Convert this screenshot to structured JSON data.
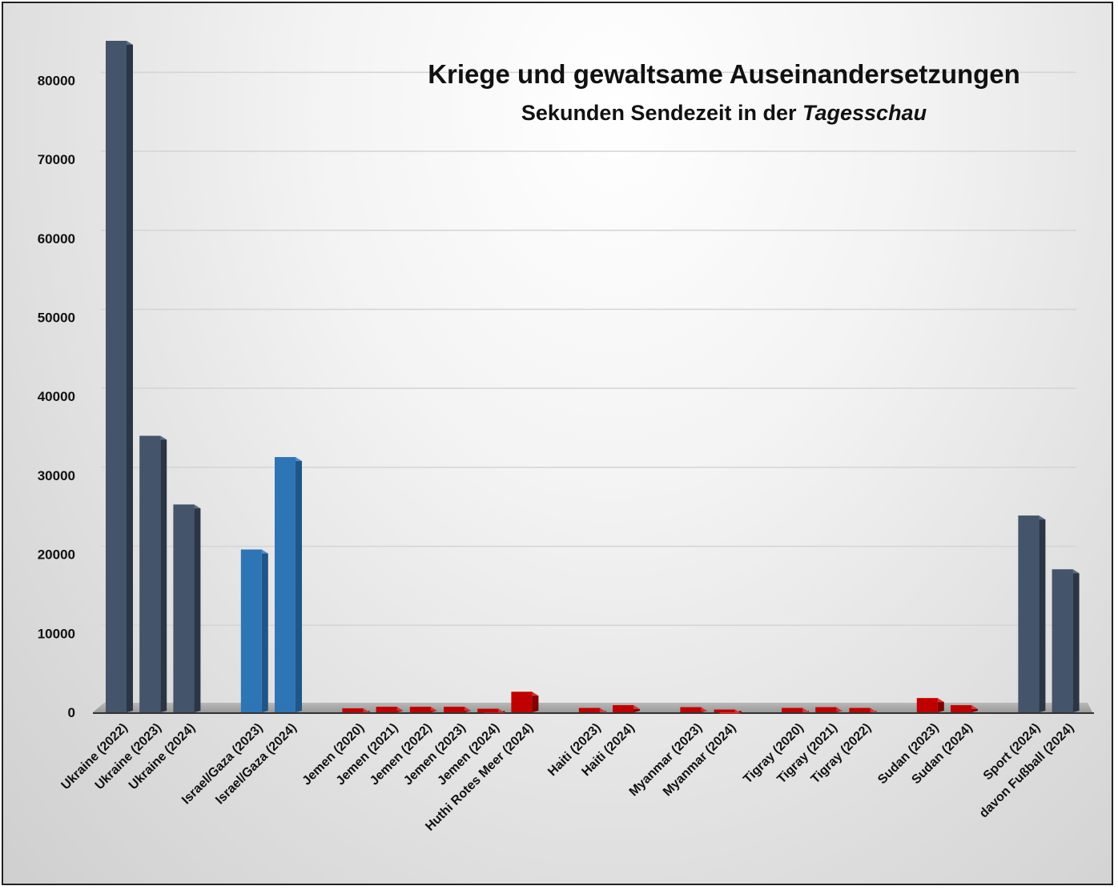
{
  "chart_data": {
    "type": "bar",
    "title": "Kriege und gewaltsame Auseinandersetzungen",
    "subtitle_prefix": "Sekunden Sendezeit in der ",
    "subtitle_emphasis": "Tagesschau",
    "xlabel": "",
    "ylabel": "",
    "ylim": [
      0,
      85000
    ],
    "yticks": [
      "0",
      "10000",
      "20000",
      "30000",
      "40000",
      "50000",
      "60000",
      "70000",
      "80000"
    ],
    "grid": true,
    "colors": {
      "dark": "#44546a",
      "blue": "#2e75b6",
      "red": "#c00000"
    },
    "categories": [
      "Ukraine (2022)",
      "Ukraine (2023)",
      "Ukraine (2024)",
      "",
      "Israel/Gaza (2023)",
      "Israel/Gaza (2024)",
      "",
      "Jemen (2020)",
      "Jemen (2021)",
      "Jemen (2022)",
      "Jemen (2023)",
      "Jemen (2024)",
      "Huthi Rotes Meer (2024)",
      "",
      "Haiti (2023)",
      "Haiti (2024)",
      "",
      "Myanmar (2023)",
      "Myanmar (2024)",
      "",
      "Tigray (2020)",
      "Tigray (2021)",
      "Tigray (2022)",
      "",
      "Sudan (2023)",
      "Sudan (2024)",
      "",
      "Sport (2024)",
      "davon Fußball (2024)"
    ],
    "values": [
      85000,
      35000,
      26300,
      null,
      20600,
      32300,
      null,
      500,
      700,
      700,
      700,
      450,
      2600,
      null,
      550,
      900,
      null,
      650,
      350,
      null,
      550,
      650,
      550,
      null,
      1800,
      900,
      null,
      24900,
      18100
    ],
    "bar_colors": [
      "dark",
      "dark",
      "dark",
      "",
      "blue",
      "blue",
      "",
      "red",
      "red",
      "red",
      "red",
      "red",
      "red",
      "",
      "red",
      "red",
      "",
      "red",
      "red",
      "",
      "red",
      "red",
      "red",
      "",
      "red",
      "red",
      "",
      "dark",
      "dark"
    ]
  }
}
